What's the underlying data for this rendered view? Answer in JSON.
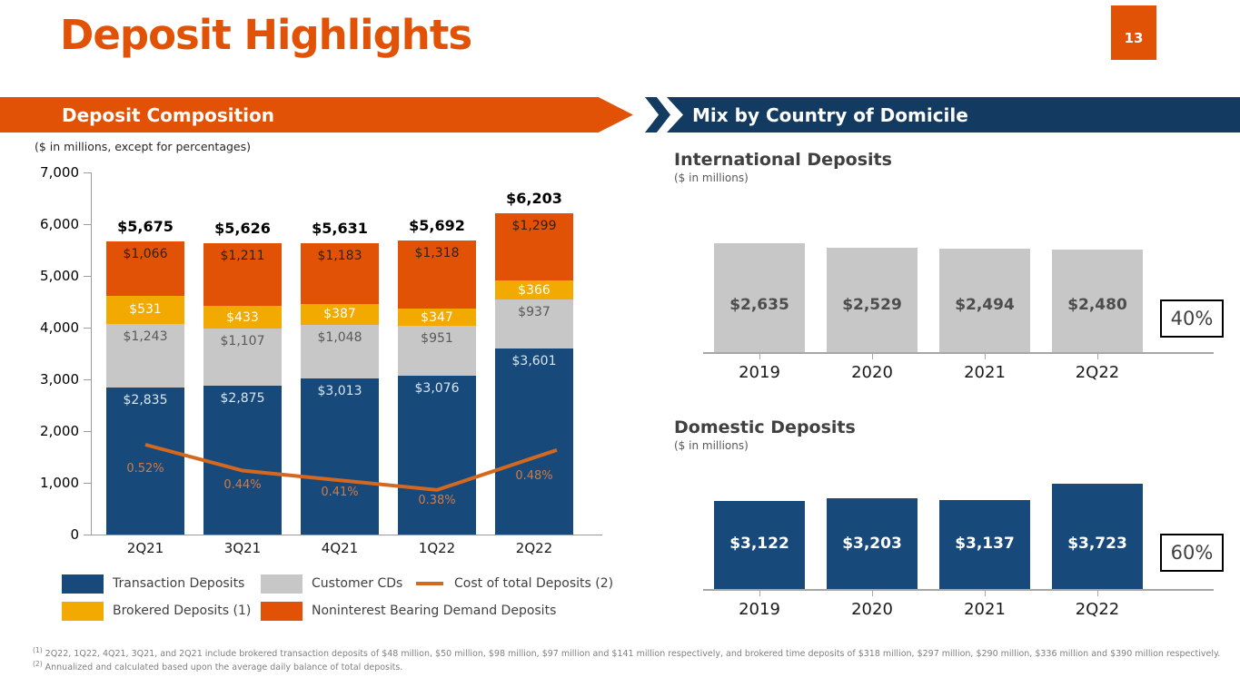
{
  "page": {
    "title": "Deposit Highlights",
    "page_number": "13"
  },
  "colors": {
    "orange": "#E15206",
    "gold": "#F2A900",
    "navy": "#17497B",
    "navy_banner": "#133A60",
    "gray": "#C7C7C7",
    "line_orange": "#D4681F"
  },
  "left_section": {
    "banner": "Deposit Composition",
    "units_note": "($ in millions, except for percentages)",
    "legend": [
      {
        "label": "Transaction Deposits",
        "type": "swatch",
        "color": "#17497B"
      },
      {
        "label": "Customer CDs",
        "type": "swatch",
        "color": "#C7C7C7"
      },
      {
        "label": "Cost of total Deposits (2)",
        "type": "line",
        "color": "#D4681F"
      },
      {
        "label": "Brokered Deposits (1)",
        "type": "swatch",
        "color": "#F2A900"
      },
      {
        "label": "Noninterest Bearing Demand Deposits",
        "type": "swatch",
        "color": "#E15206"
      }
    ],
    "footnotes": [
      {
        "sup": "(1)",
        "text": "2Q22, 1Q22,  4Q21, 3Q21, and 2Q21 include brokered transaction deposits of $48 million, $50 million, $98 million, $97 million and $141 million respectively, and brokered time deposits of $318 million,  $297 million,  $290 million, $336 million and $390 million respectively."
      },
      {
        "sup": "(2)",
        "text": "Annualized and calculated based upon the average daily balance of total deposits."
      }
    ]
  },
  "right_section": {
    "banner": "Mix by Country of Domicile"
  },
  "chart_data": [
    {
      "type": "bar",
      "subtype": "stacked-with-line",
      "title": "Deposit Composition",
      "categories": [
        "2Q21",
        "3Q21",
        "4Q21",
        "1Q22",
        "2Q22"
      ],
      "series": [
        {
          "name": "Transaction Deposits",
          "color": "#17497B",
          "label_color": "#D9E6F2",
          "values": [
            2835,
            2875,
            3013,
            3076,
            3601
          ],
          "labels": [
            "$2,835",
            "$2,875",
            "$3,013",
            "$3,076",
            "$3,601"
          ]
        },
        {
          "name": "Customer CDs",
          "color": "#C7C7C7",
          "label_color": "#595959",
          "values": [
            1243,
            1107,
            1048,
            951,
            937
          ],
          "labels": [
            "$1,243",
            "$1,107",
            "$1,048",
            "$951",
            "$937"
          ]
        },
        {
          "name": "Brokered Deposits (1)",
          "color": "#F2A900",
          "label_color": "#FFFFFF",
          "values": [
            531,
            433,
            387,
            347,
            366
          ],
          "labels": [
            "$531",
            "$433",
            "$387",
            "$347",
            "$366"
          ]
        },
        {
          "name": "Noninterest Bearing Demand Deposits",
          "color": "#E15206",
          "label_color": "#33210C",
          "values": [
            1066,
            1211,
            1183,
            1318,
            1299
          ],
          "labels": [
            "$1,066",
            "$1,211",
            "$1,183",
            "$1,318",
            "$1,299"
          ]
        }
      ],
      "totals": {
        "values": [
          5675,
          5626,
          5631,
          5692,
          6203
        ],
        "labels": [
          "$5,675",
          "$5,626",
          "$5,631",
          "$5,692",
          "$6,203"
        ]
      },
      "line_series": {
        "name": "Cost of total Deposits (2)",
        "color": "#D4681F",
        "values": [
          0.52,
          0.44,
          0.41,
          0.38,
          0.48
        ],
        "labels": [
          "0.52%",
          "0.44%",
          "0.41%",
          "0.38%",
          "0.48%"
        ]
      },
      "ylim": [
        0,
        7000
      ],
      "yticks": {
        "values": [
          7000,
          6000,
          5000,
          4000,
          3000,
          2000,
          1000,
          0
        ],
        "labels": [
          "7,000",
          "6,000",
          "5,000",
          "4,000",
          "3,000",
          "2,000",
          "1,000",
          "0"
        ]
      },
      "grid": false,
      "legend_position": "bottom"
    },
    {
      "type": "bar",
      "title": "International Deposits",
      "units": "($ in millions)",
      "categories": [
        "2019",
        "2020",
        "2021",
        "2Q22"
      ],
      "values": [
        2635,
        2529,
        2494,
        2480
      ],
      "labels": [
        "$2,635",
        "$2,529",
        "$2,494",
        "$2,480"
      ],
      "color": "#C7C7C7",
      "label_color": "#4D4D4D",
      "share_label": "40%"
    },
    {
      "type": "bar",
      "title": "Domestic Deposits",
      "units": "($ in millions)",
      "categories": [
        "2019",
        "2020",
        "2021",
        "2Q22"
      ],
      "values": [
        3122,
        3203,
        3137,
        3723
      ],
      "labels": [
        "$3,122",
        "$3,203",
        "$3,137",
        "$3,723"
      ],
      "color": "#17497B",
      "label_color": "#FFFFFF",
      "share_label": "60%"
    }
  ]
}
